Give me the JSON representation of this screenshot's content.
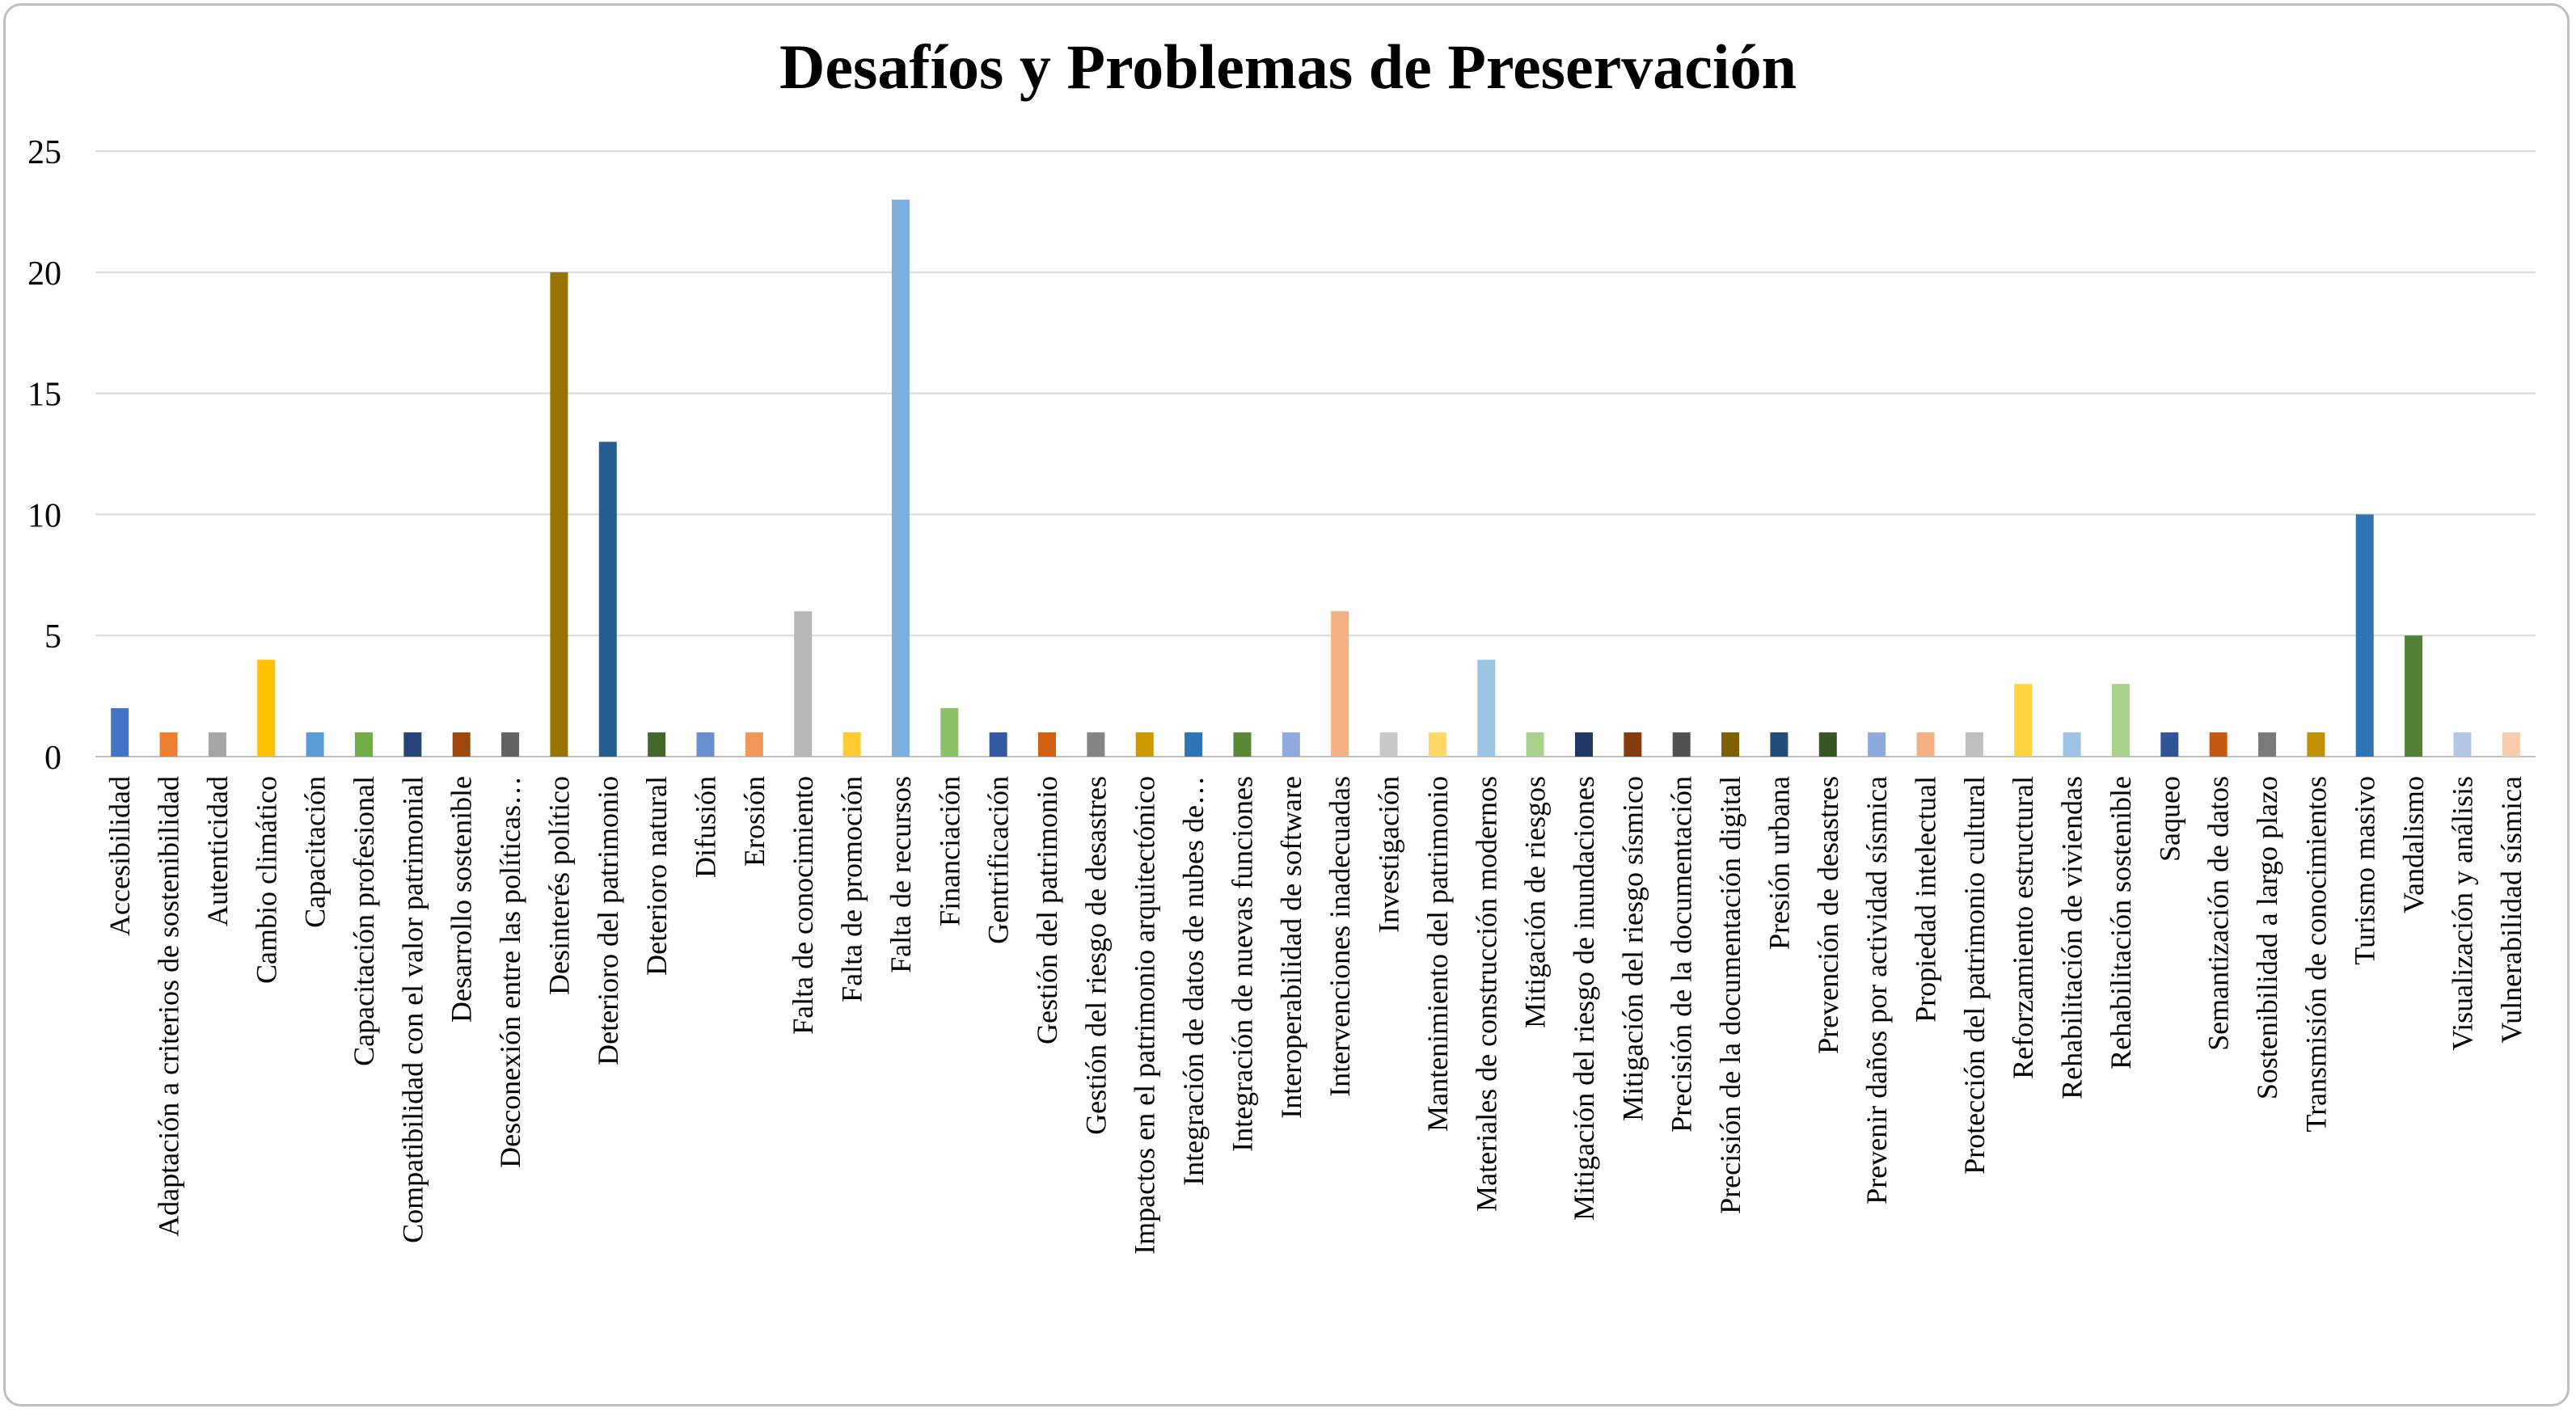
{
  "chart_data": {
    "type": "bar",
    "title": "Desafíos y Problemas de Preservación",
    "xlabel": "",
    "ylabel": "",
    "ylim": [
      0,
      25
    ],
    "yticks": [
      0,
      5,
      10,
      15,
      20,
      25
    ],
    "grid": true,
    "legend": "none",
    "categories": [
      "Accesibilidad",
      "Adaptación a criterios de sostenibilidad",
      "Autenticidad",
      "Cambio climático",
      "Capacitación",
      "Capacitación profesional",
      "Compatibilidad con el valor patrimonial",
      "Desarrollo sostenible",
      "Desconexión entre las políticas…",
      "Desinterés político",
      "Deterioro del patrimonio",
      "Deterioro natural",
      "Difusión",
      "Erosión",
      "Falta de conocimiento",
      "Falta de promoción",
      "Falta de recursos",
      "Financiación",
      "Gentrificación",
      "Gestión del patrimonio",
      "Gestión del riesgo de desastres",
      "Impactos en el patrimonio arquitectónico",
      "Integración de datos de nubes de…",
      "Integración de nuevas funciones",
      "Interoperabilidad de software",
      "Intervenciones inadecuadas",
      "Investigación",
      "Mantenimiento del patrimonio",
      "Materiales de construcción modernos",
      "Mitigación de riesgos",
      "Mitigación del riesgo de inundaciones",
      "Mitigación del riesgo sísmico",
      "Precisión de la documentación",
      "Precisión de la documentación digital",
      "Presión urbana",
      "Prevención de desastres",
      "Prevenir daños por actividad sísmica",
      "Propiedad intelectual",
      "Protección del patrimonio cultural",
      "Reforzamiento estructural",
      "Rehabilitación de viviendas",
      "Rehabilitación sostenible",
      "Saqueo",
      "Semantización de datos",
      "Sostenibilidad a largo plazo",
      "Transmisión de conocimientos",
      "Turismo masivo",
      "Vandalismo",
      "Visualización y análisis",
      "Vulnerabilidad sísmica"
    ],
    "values": [
      2,
      1,
      1,
      4,
      1,
      1,
      1,
      1,
      1,
      20,
      13,
      1,
      1,
      1,
      6,
      1,
      23,
      2,
      1,
      1,
      1,
      1,
      1,
      1,
      1,
      6,
      1,
      1,
      4,
      1,
      1,
      1,
      1,
      1,
      1,
      1,
      1,
      1,
      1,
      3,
      1,
      3,
      1,
      1,
      1,
      1,
      10,
      5,
      1,
      1
    ],
    "colors": [
      "#4472c4",
      "#ed7d31",
      "#a5a5a5",
      "#ffc000",
      "#5b9bd5",
      "#70ad47",
      "#264478",
      "#9e480e",
      "#636363",
      "#997300",
      "#255e91",
      "#43682b",
      "#698ed0",
      "#f1975a",
      "#b7b7b7",
      "#ffcd33",
      "#7cafdd",
      "#8cc168",
      "#335aa1",
      "#d26012",
      "#848484",
      "#cc9a00",
      "#2e75b6",
      "#5a8a39",
      "#8faadc",
      "#f4b183",
      "#c9c9c9",
      "#ffd966",
      "#9dc3e6",
      "#a9d18e",
      "#203864",
      "#843c0c",
      "#525252",
      "#7f6000",
      "#1f4e79",
      "#375623",
      "#8ea9db",
      "#f4b183",
      "#bfbfbf",
      "#ffd23f",
      "#9dc3e6",
      "#a9d18e",
      "#2f5597",
      "#c55a11",
      "#7b7b7b",
      "#bf9000",
      "#2e75b6",
      "#548235",
      "#b4c7e7",
      "#f8cbad"
    ]
  }
}
